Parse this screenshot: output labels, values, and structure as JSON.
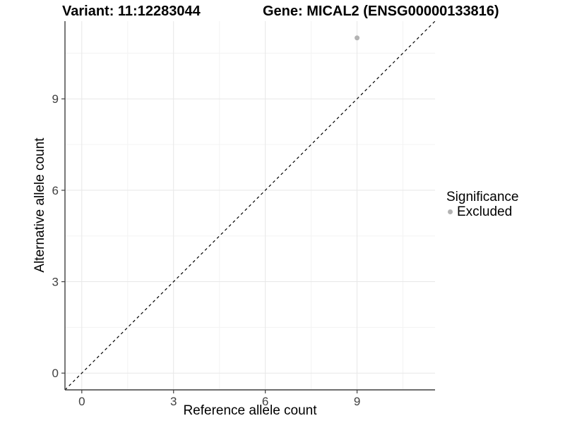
{
  "chart_data": {
    "type": "scatter",
    "titles": {
      "variant": "Variant: 11:12283044",
      "gene": "Gene: MICAL2 (ENSG00000133816)"
    },
    "xlabel": "Reference allele count",
    "ylabel": "Alternative allele count",
    "xlim": [
      -0.55,
      11.55
    ],
    "ylim": [
      -0.55,
      11.55
    ],
    "x_ticks": [
      0,
      3,
      6,
      9
    ],
    "y_ticks": [
      0,
      3,
      6,
      9
    ],
    "x_minor_breaks": [
      1.5,
      4.5,
      7.5,
      10.5
    ],
    "y_minor_breaks": [
      1.5,
      4.5,
      7.5,
      10.5
    ],
    "grid": true,
    "points": [
      {
        "x": 9,
        "y": 11,
        "significance": "Excluded"
      }
    ],
    "identity_line": {
      "style": "dashed",
      "from": [
        -0.55,
        -0.55
      ],
      "to": [
        11.55,
        11.55
      ],
      "color": "#000000"
    },
    "legend": {
      "title": "Significance",
      "position": "right",
      "items": [
        {
          "label": "Excluded",
          "color": "#b3b3b3"
        }
      ]
    },
    "colors": {
      "point": "#b3b3b3",
      "grid_major": "#e7e7e7",
      "grid_minor": "#f3f3f3",
      "axis_line": "#3f3f3f",
      "tick_text": "#404040"
    }
  }
}
